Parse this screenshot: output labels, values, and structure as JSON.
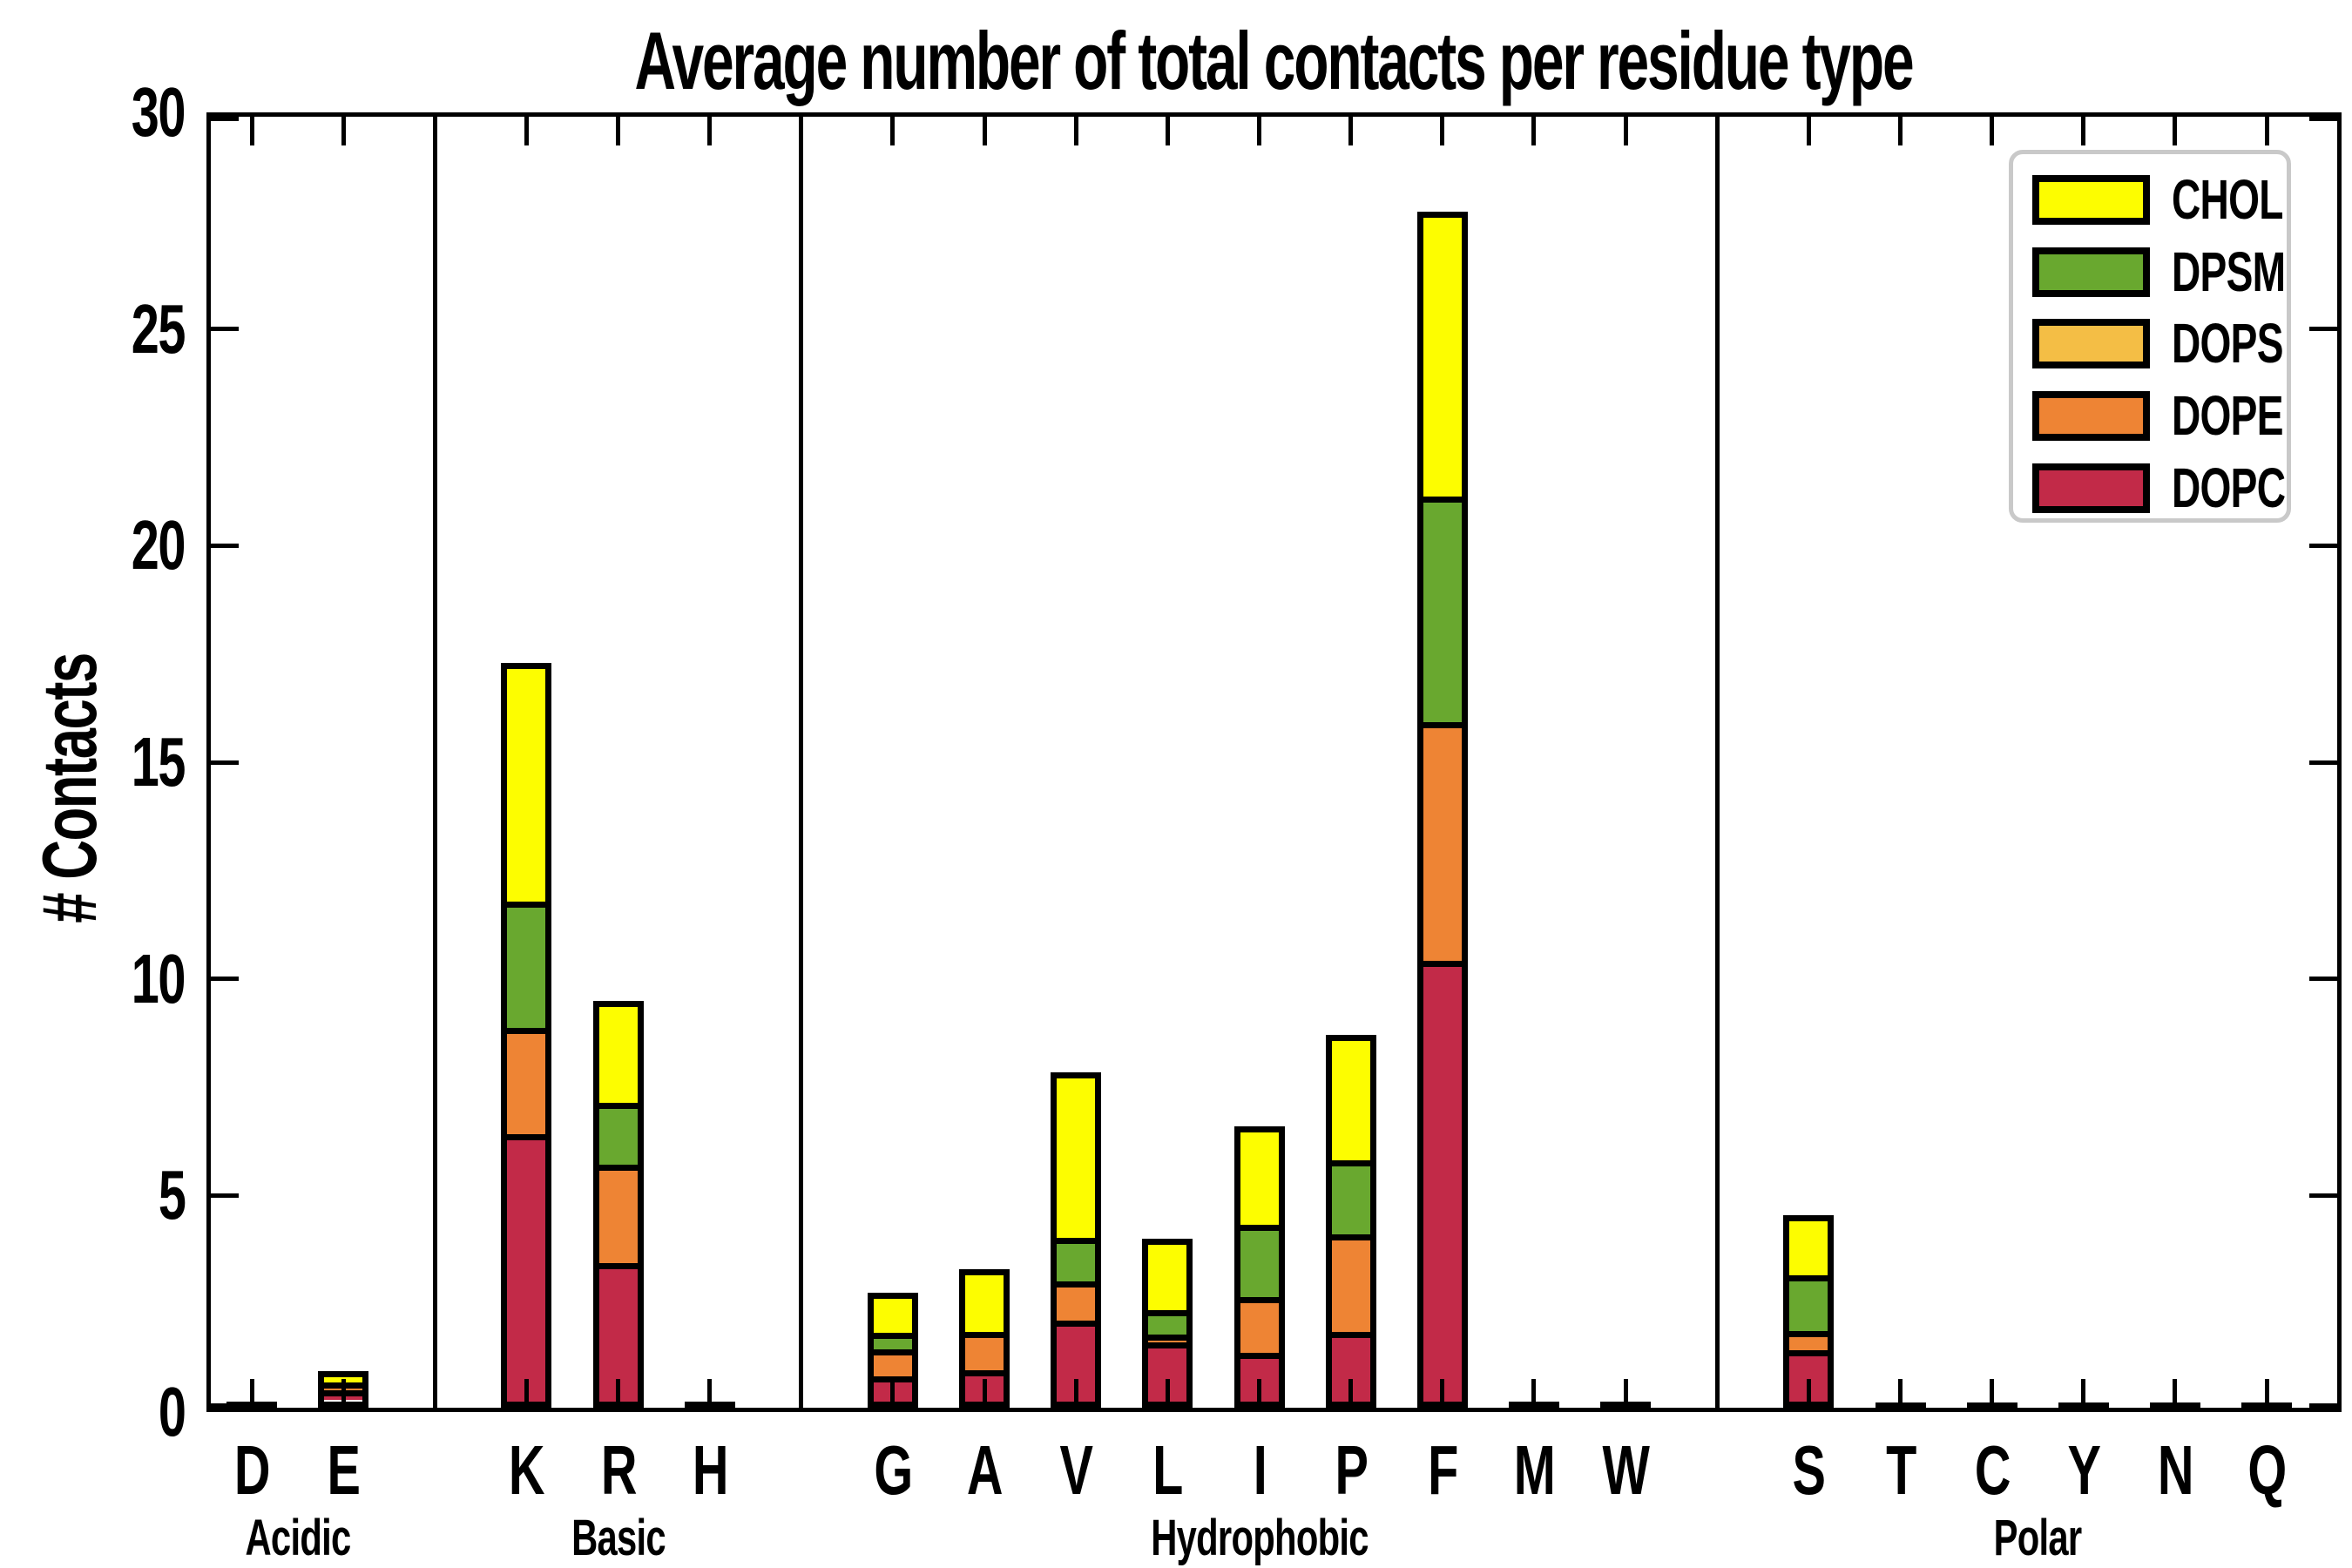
{
  "title": "Average number of total contacts per residue type",
  "ylabel": "# Contacts",
  "chart_data": {
    "type": "bar",
    "stacked": true,
    "title": "Average number of total contacts per residue type",
    "xlabel": "",
    "ylabel": "# Contacts",
    "ylim": [
      0,
      30
    ],
    "yticks": [
      0,
      5,
      10,
      15,
      20,
      25,
      30
    ],
    "grid": false,
    "legend_position": "upper right",
    "legend": [
      "CHOL",
      "DPSM",
      "DOPS",
      "DOPE",
      "DOPC"
    ],
    "groups": [
      {
        "label": "Acidic",
        "residues": [
          "D",
          "E"
        ]
      },
      {
        "label": "Basic",
        "residues": [
          "K",
          "R",
          "H"
        ]
      },
      {
        "label": "Hydrophobic",
        "residues": [
          "G",
          "A",
          "V",
          "L",
          "I",
          "P",
          "F",
          "M",
          "W"
        ]
      },
      {
        "label": "Polar",
        "residues": [
          "S",
          "T",
          "C",
          "Y",
          "N",
          "Q"
        ]
      }
    ],
    "categories": [
      "D",
      "E",
      "K",
      "R",
      "H",
      "G",
      "A",
      "V",
      "L",
      "I",
      "P",
      "F",
      "M",
      "W",
      "S",
      "T",
      "C",
      "Y",
      "N",
      "Q"
    ],
    "series": [
      {
        "name": "DOPC",
        "color": "#c22a48",
        "values": [
          0.04,
          0.25,
          6.3,
          3.3,
          0.04,
          0.6,
          0.7,
          1.9,
          1.5,
          1.1,
          1.6,
          10.3,
          0.04,
          0.04,
          1.25,
          0.03,
          0.03,
          0.03,
          0.03,
          0.03
        ]
      },
      {
        "name": "DOPE",
        "color": "#ee8434",
        "values": [
          0,
          0.15,
          2.4,
          2.3,
          0,
          0.65,
          0.9,
          0.85,
          0.05,
          1.3,
          2.3,
          5.5,
          0,
          0,
          0.35,
          0,
          0,
          0,
          0,
          0
        ]
      },
      {
        "name": "DOPS",
        "color": "#f4be45",
        "values": [
          0,
          0,
          0,
          0,
          0,
          0,
          0,
          0,
          0,
          0,
          0,
          0,
          0,
          0,
          0,
          0,
          0,
          0,
          0,
          0
        ]
      },
      {
        "name": "DPSM",
        "color": "#69a82f",
        "values": [
          0,
          0,
          2.9,
          1.4,
          0,
          0.35,
          0,
          0.95,
          0.5,
          1.7,
          1.7,
          5.2,
          0,
          0,
          1.35,
          0,
          0,
          0,
          0,
          0
        ]
      },
      {
        "name": "CHOL",
        "color": "#fdfd00",
        "values": [
          0,
          0.45,
          5.6,
          2.4,
          0,
          1.05,
          1.6,
          4.05,
          1.85,
          2.4,
          3.0,
          6.6,
          0,
          0,
          1.5,
          0,
          0,
          0,
          0,
          0
        ]
      }
    ],
    "totals": {
      "D": 0.04,
      "E": 0.85,
      "K": 17.2,
      "R": 9.4,
      "H": 0.04,
      "G": 2.65,
      "A": 3.2,
      "V": 7.75,
      "L": 3.9,
      "I": 6.5,
      "P": 8.6,
      "F": 27.6,
      "M": 0.04,
      "W": 0.04,
      "S": 4.45,
      "T": 0.03,
      "C": 0.03,
      "Y": 0.03,
      "N": 0.03,
      "Q": 0.03
    }
  }
}
